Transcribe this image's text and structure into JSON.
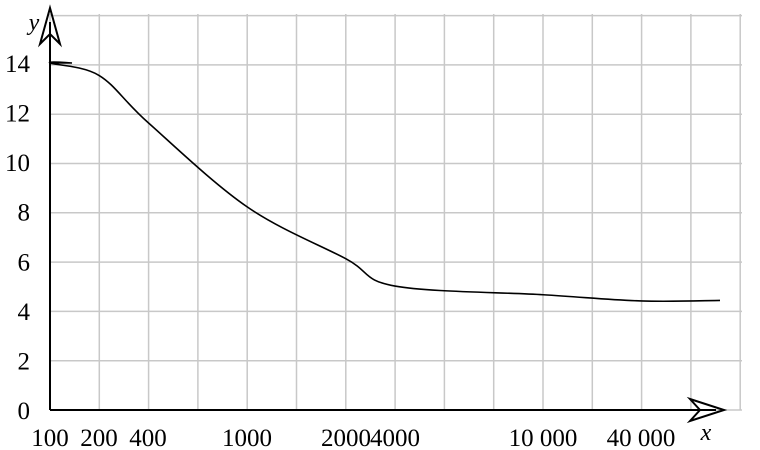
{
  "chart_data": {
    "type": "line",
    "title": "",
    "xlabel": "x",
    "ylabel": "y",
    "x_scale": "nonuniform categorical ticks",
    "x_ticks": [
      "100",
      "200",
      "400",
      "1000",
      "2000",
      "4000",
      "10 000",
      "40 000"
    ],
    "y_ticks": [
      "0",
      "2",
      "4",
      "6",
      "8",
      "10",
      "12",
      "14"
    ],
    "ylim": [
      0,
      14
    ],
    "grid": true,
    "series": [
      {
        "values": [
          {
            "x": "100",
            "y": 14
          },
          {
            "x": "200",
            "y": 13.5
          },
          {
            "x": "400",
            "y": 11.6
          },
          {
            "x": "1000",
            "y": 8.2
          },
          {
            "x": "2000",
            "y": 6.1
          },
          {
            "x": "4000",
            "y": 5.0
          },
          {
            "x": "10 000",
            "y": 4.65
          },
          {
            "x": "40 000",
            "y": 4.4
          }
        ]
      }
    ]
  }
}
